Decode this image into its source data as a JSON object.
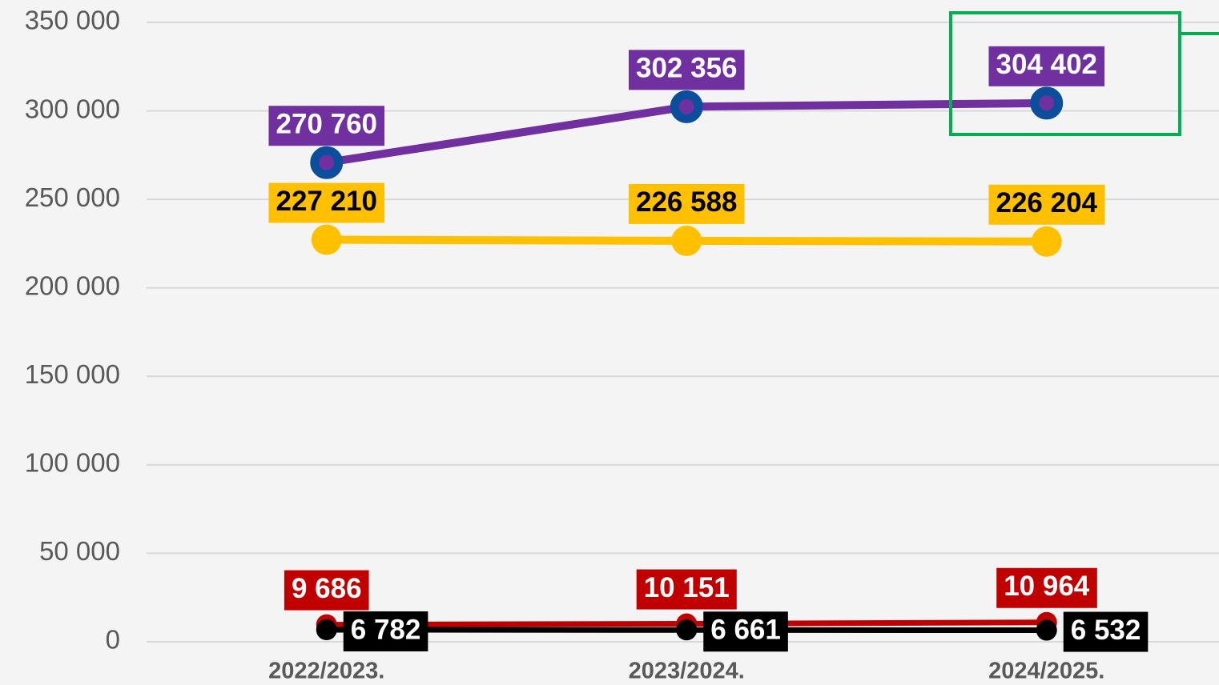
{
  "chart_data": {
    "type": "line",
    "categories": [
      "2022/2023.",
      "2023/2024.",
      "2024/2025."
    ],
    "ylim": [
      0,
      350000
    ],
    "yticks": [
      0,
      {
        "value": 50000,
        "label": "50 000"
      },
      {
        "value": 100000,
        "label": "100 000"
      },
      {
        "value": 150000,
        "label": "150 000"
      },
      {
        "value": 200000,
        "label": "200 000"
      },
      {
        "value": 250000,
        "label": "250 000"
      },
      {
        "value": 300000,
        "label": "300 000"
      },
      {
        "value": 350000,
        "label": "350 000"
      }
    ],
    "grid": true,
    "series": [
      {
        "color": "#7030a0",
        "marker_color": "#0b4f9c",
        "label_color": "#ffffff",
        "values": [
          270760,
          302356,
          304402
        ],
        "value_labels": [
          "270 760",
          "302 356",
          "304 402"
        ]
      },
      {
        "color": "#ffc000",
        "label_color": "#000000",
        "values": [
          227210,
          226588,
          226204
        ],
        "value_labels": [
          "227 210",
          "226 588",
          "226 204"
        ]
      },
      {
        "color": "#c00000",
        "label_color": "#ffffff",
        "values": [
          9686,
          10151,
          10964
        ],
        "value_labels": [
          "9 686",
          "10 151",
          "10 964"
        ]
      },
      {
        "color": "#000000",
        "label_color": "#ffffff",
        "values": [
          6782,
          6661,
          6532
        ],
        "value_labels": [
          "6 782",
          "6 661",
          "6 532"
        ]
      }
    ]
  }
}
